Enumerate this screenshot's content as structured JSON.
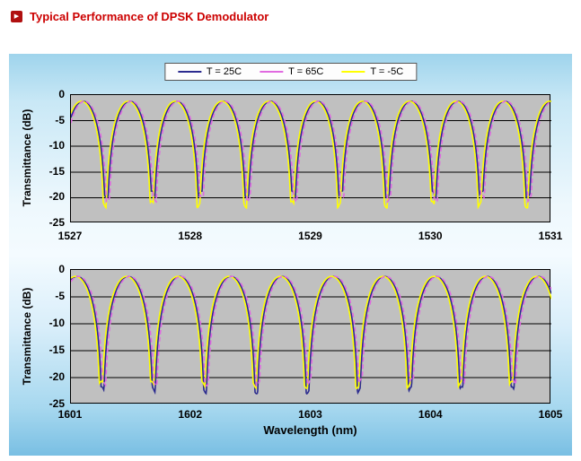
{
  "header": {
    "title": "Typical Performance of DPSK Demodulator",
    "bullet_glyph": "▶"
  },
  "chart": {
    "xlabel": "Wavelength (nm)"
  },
  "legend": {
    "entries": [
      {
        "label": "T = 25C",
        "color": "#2b2b8f"
      },
      {
        "label": "T = 65C",
        "color": "#e06ae0"
      },
      {
        "label": "T = -5C",
        "color": "#ffff00"
      }
    ]
  },
  "colors": {
    "title_text": "#cc0000",
    "bullet_bg": "#b01010",
    "plot_bg": "#c0c0c0",
    "grid_line": "#000000",
    "legend_border": "#555555"
  },
  "chart_data": [
    {
      "type": "line",
      "title": "",
      "xlabel": "",
      "ylabel": "Transmittance (dB)",
      "xlim": [
        1527,
        1531
      ],
      "ylim": [
        -25,
        0
      ],
      "xticks": [
        "1527",
        "1528",
        "1529",
        "1530",
        "1531"
      ],
      "yticks": [
        "0",
        "-5",
        "-10",
        "-15",
        "-20",
        "-25"
      ],
      "grid": "horizontal",
      "legend_position": "top",
      "fringe": {
        "period_nm": 0.39,
        "first_peak_nm": 1527.1,
        "peak_db": -1.2
      },
      "series": [
        {
          "name": "T = 25C",
          "color": "#2b2b8f",
          "shift_nm": 0.0,
          "floor_db": -20.0,
          "dash": ""
        },
        {
          "name": "T = 65C",
          "color": "#e06ae0",
          "shift_nm": 0.013,
          "floor_db": -20.8,
          "dash": "5 3"
        },
        {
          "name": "T = -5C",
          "color": "#ffff00",
          "shift_nm": -0.013,
          "floor_db": -22.0,
          "dash": ""
        }
      ]
    },
    {
      "type": "line",
      "title": "",
      "xlabel": "",
      "ylabel": "Transmittance (dB)",
      "xlim": [
        1601,
        1605
      ],
      "ylim": [
        -25,
        0
      ],
      "xticks": [
        "1601",
        "1602",
        "1603",
        "1604",
        "1605"
      ],
      "yticks": [
        "0",
        "-5",
        "-10",
        "-15",
        "-20",
        "-25"
      ],
      "grid": "horizontal",
      "legend_position": "top",
      "fringe": {
        "period_nm": 0.4267,
        "first_peak_nm": 1601.05,
        "peak_db": -1.2
      },
      "series": [
        {
          "name": "T = 25C",
          "color": "#2b2b8f",
          "shift_nm": 0.0,
          "floor_db": -23.0,
          "dash": ""
        },
        {
          "name": "T = 65C",
          "color": "#e06ae0",
          "shift_nm": 0.013,
          "floor_db": -21.5,
          "dash": "5 3"
        },
        {
          "name": "T = -5C",
          "color": "#ffff00",
          "shift_nm": -0.013,
          "floor_db": -22.0,
          "dash": ""
        }
      ]
    }
  ]
}
